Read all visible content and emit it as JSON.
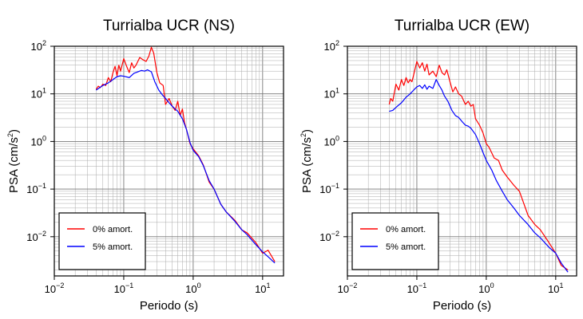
{
  "chart_data": [
    {
      "type": "line",
      "title": "Turrialba UCR (NS)",
      "xlabel": "Periodo (s)",
      "ylabel_main": "PSA (cm/s",
      "ylabel_sup": "2",
      "ylabel_close": ")",
      "xscale": "log",
      "yscale": "log",
      "xlim": [
        0.01,
        20
      ],
      "ylim": [
        0.0015,
        100
      ],
      "grid": true,
      "legend_position": "bottom-left",
      "series": [
        {
          "name": "0% amort.",
          "color": "#ff0000",
          "x": [
            0.04,
            0.043,
            0.046,
            0.05,
            0.055,
            0.06,
            0.065,
            0.07,
            0.075,
            0.08,
            0.085,
            0.09,
            0.1,
            0.11,
            0.12,
            0.13,
            0.14,
            0.15,
            0.17,
            0.19,
            0.21,
            0.23,
            0.25,
            0.27,
            0.3,
            0.33,
            0.37,
            0.4,
            0.45,
            0.5,
            0.55,
            0.6,
            0.65,
            0.7,
            0.75,
            0.8,
            0.9,
            1.0,
            1.2,
            1.4,
            1.7,
            2.0,
            2.5,
            3.0,
            4.0,
            5.0,
            6.0,
            8.0,
            10.0,
            12.0,
            15.0
          ],
          "y": [
            12.5,
            14.5,
            13.5,
            16,
            15,
            22,
            18,
            28,
            38,
            24,
            40,
            30,
            55,
            38,
            28,
            45,
            35,
            40,
            58,
            52,
            48,
            62,
            95,
            72,
            28,
            17,
            15,
            6,
            8,
            5.5,
            4.5,
            7,
            3.5,
            4.8,
            2.5,
            1.8,
            0.9,
            0.7,
            0.5,
            0.32,
            0.14,
            0.1,
            0.048,
            0.033,
            0.022,
            0.014,
            0.012,
            0.0075,
            0.0045,
            0.0052,
            0.003
          ]
        },
        {
          "name": "5% amort.",
          "color": "#0000ff",
          "x": [
            0.04,
            0.045,
            0.05,
            0.06,
            0.07,
            0.08,
            0.09,
            0.1,
            0.12,
            0.14,
            0.16,
            0.18,
            0.2,
            0.22,
            0.25,
            0.28,
            0.32,
            0.36,
            0.4,
            0.45,
            0.5,
            0.55,
            0.6,
            0.7,
            0.8,
            0.9,
            1.0,
            1.2,
            1.4,
            1.7,
            2.0,
            2.5,
            3.0,
            4.0,
            5.0,
            6.0,
            8.0,
            10.0,
            12.0,
            15.0
          ],
          "y": [
            12,
            13.5,
            15,
            17,
            20,
            23,
            24,
            23.5,
            22,
            27,
            29,
            31,
            30,
            32,
            29,
            18,
            12,
            9.5,
            8,
            6.5,
            5.5,
            4.8,
            4.3,
            3,
            1.8,
            0.95,
            0.65,
            0.48,
            0.31,
            0.15,
            0.1,
            0.048,
            0.033,
            0.021,
            0.014,
            0.011,
            0.0068,
            0.0048,
            0.0038,
            0.0028
          ]
        }
      ]
    },
    {
      "type": "line",
      "title": "Turrialba UCR (EW)",
      "xlabel": "Periodo (s)",
      "ylabel_main": "PSA (cm/s",
      "ylabel_sup": "2",
      "ylabel_close": ")",
      "xscale": "log",
      "yscale": "log",
      "xlim": [
        0.01,
        20
      ],
      "ylim": [
        0.0015,
        100
      ],
      "grid": true,
      "legend_position": "bottom-left",
      "series": [
        {
          "name": "0% amort.",
          "color": "#ff0000",
          "x": [
            0.04,
            0.042,
            0.045,
            0.05,
            0.055,
            0.06,
            0.065,
            0.07,
            0.075,
            0.08,
            0.085,
            0.09,
            0.1,
            0.11,
            0.12,
            0.13,
            0.14,
            0.15,
            0.17,
            0.19,
            0.21,
            0.23,
            0.25,
            0.27,
            0.3,
            0.33,
            0.36,
            0.4,
            0.44,
            0.5,
            0.55,
            0.6,
            0.65,
            0.7,
            0.8,
            0.9,
            1.0,
            1.1,
            1.3,
            1.5,
            1.7,
            2.0,
            2.5,
            3.0,
            4.0,
            5.0,
            6.0,
            8.0,
            10.0,
            12.0,
            15.0
          ],
          "y": [
            6,
            8,
            7,
            16,
            12,
            20,
            15,
            22,
            17,
            20,
            18,
            25,
            48,
            35,
            45,
            30,
            42,
            25,
            30,
            23,
            40,
            28,
            25,
            32,
            18,
            11,
            14,
            10,
            9,
            6,
            7,
            5.5,
            6,
            3,
            2.2,
            1.5,
            0.9,
            0.75,
            0.45,
            0.4,
            0.25,
            0.18,
            0.12,
            0.09,
            0.028,
            0.018,
            0.014,
            0.0075,
            0.0045,
            0.0025,
            0.002
          ]
        },
        {
          "name": "5% amort.",
          "color": "#0000ff",
          "x": [
            0.04,
            0.045,
            0.05,
            0.06,
            0.07,
            0.08,
            0.09,
            0.1,
            0.11,
            0.12,
            0.13,
            0.14,
            0.15,
            0.17,
            0.19,
            0.21,
            0.23,
            0.25,
            0.28,
            0.32,
            0.36,
            0.4,
            0.45,
            0.5,
            0.55,
            0.6,
            0.7,
            0.8,
            0.9,
            1.0,
            1.2,
            1.4,
            1.7,
            2.0,
            2.5,
            3.0,
            4.0,
            5.0,
            6.0,
            8.0,
            10.0,
            12.0,
            15.0
          ],
          "y": [
            4.3,
            4.5,
            5.2,
            6.5,
            8.5,
            10,
            12,
            14,
            15,
            13,
            15.5,
            12.5,
            14.5,
            13,
            20,
            15,
            12,
            9,
            7,
            4.5,
            3.5,
            3.2,
            2.6,
            2.2,
            2.1,
            1.9,
            1.4,
            0.9,
            0.58,
            0.4,
            0.25,
            0.15,
            0.09,
            0.06,
            0.04,
            0.028,
            0.018,
            0.012,
            0.0095,
            0.006,
            0.0045,
            0.0028,
            0.0018
          ]
        }
      ]
    }
  ]
}
